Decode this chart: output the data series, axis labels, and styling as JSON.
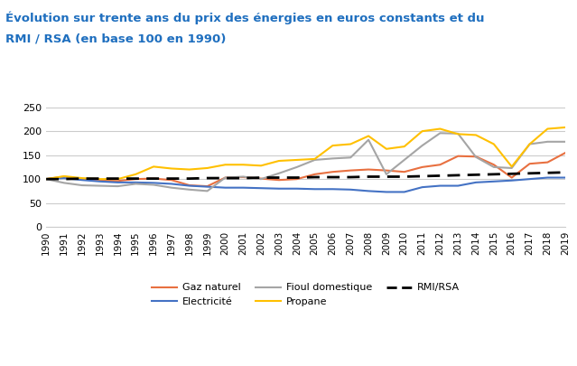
{
  "title_line1": "Évolution sur trente ans du prix des énergies en euros constants et du",
  "title_line2": "RMI / RSA (en base 100 en 1990)",
  "title_color": "#1F6FBF",
  "years": [
    1990,
    1991,
    1992,
    1993,
    1994,
    1995,
    1996,
    1997,
    1998,
    1999,
    2000,
    2001,
    2002,
    2003,
    2004,
    2005,
    2006,
    2007,
    2008,
    2009,
    2010,
    2011,
    2012,
    2013,
    2014,
    2015,
    2016,
    2017,
    2018,
    2019
  ],
  "gaz_naturel": [
    100,
    105,
    100,
    97,
    96,
    100,
    101,
    98,
    87,
    85,
    103,
    104,
    101,
    98,
    100,
    110,
    115,
    118,
    120,
    118,
    115,
    125,
    130,
    148,
    147,
    130,
    103,
    132,
    135,
    155
  ],
  "electricite": [
    100,
    102,
    98,
    95,
    93,
    93,
    92,
    90,
    86,
    84,
    82,
    82,
    81,
    80,
    80,
    79,
    79,
    78,
    75,
    73,
    73,
    83,
    86,
    86,
    93,
    95,
    97,
    100,
    103,
    103
  ],
  "fioul_domestique": [
    100,
    92,
    87,
    86,
    85,
    90,
    88,
    82,
    78,
    75,
    103,
    105,
    100,
    112,
    125,
    140,
    143,
    145,
    182,
    110,
    140,
    170,
    196,
    195,
    146,
    125,
    123,
    173,
    178,
    178
  ],
  "propane": [
    100,
    106,
    102,
    100,
    100,
    110,
    126,
    122,
    120,
    123,
    130,
    130,
    128,
    138,
    140,
    142,
    170,
    173,
    190,
    163,
    168,
    200,
    205,
    194,
    192,
    173,
    126,
    173,
    205,
    208
  ],
  "rmi_rsa": [
    100,
    100,
    101,
    101,
    101,
    101,
    101,
    101,
    101,
    102,
    102,
    102,
    103,
    103,
    103,
    104,
    104,
    104,
    105,
    105,
    105,
    106,
    107,
    108,
    109,
    110,
    111,
    112,
    113,
    114
  ],
  "colors": {
    "gaz_naturel": "#E87040",
    "electricite": "#4472C4",
    "fioul_domestique": "#A5A5A5",
    "propane": "#FFC000",
    "rmi_rsa": "#000000"
  },
  "ylim": [
    0,
    260
  ],
  "yticks": [
    0,
    50,
    100,
    150,
    200,
    250
  ],
  "legend_labels": [
    "Gaz naturel",
    "Electricité",
    "Fioul domestique",
    "Propane",
    "RMI/RSA"
  ],
  "background_color": "#FFFFFF",
  "plot_bg_color": "#FFFFFF"
}
